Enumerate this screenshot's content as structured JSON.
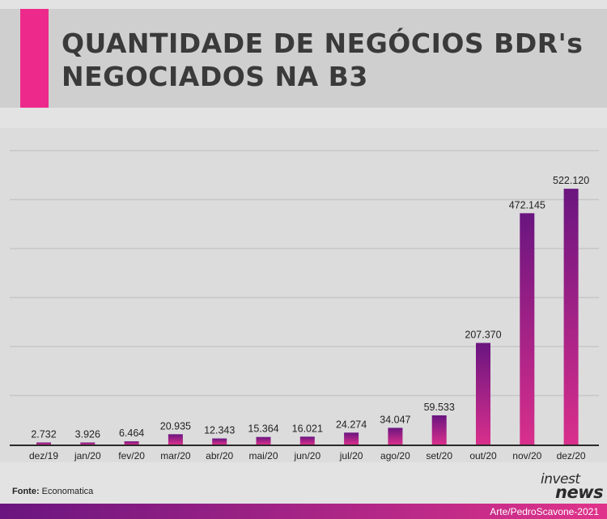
{
  "colors": {
    "accent": "#ed2a8c",
    "bar_top": "#6a1580",
    "bar_bottom": "#d92f8c",
    "footer_left": "#6a1580",
    "footer_right": "#e0338b",
    "grid": "#c6c6c6",
    "axis": "#2a2a2a"
  },
  "header": {
    "title_line1": "QUANTIDADE DE NEGÓCIOS BDR's",
    "title_line2": "NEGOCIADOS NA B3"
  },
  "chart_data": {
    "type": "bar",
    "title": "QUANTIDADE DE NEGÓCIOS BDR's NEGOCIADOS NA B3",
    "xlabel": "",
    "ylabel": "",
    "ylim": [
      0,
      600000
    ],
    "grid": true,
    "categories": [
      "dez/19",
      "jan/20",
      "fev/20",
      "mar/20",
      "abr/20",
      "mai/20",
      "jun/20",
      "jul/20",
      "ago/20",
      "set/20",
      "out/20",
      "nov/20",
      "dez/20"
    ],
    "values": [
      2732,
      3926,
      6464,
      20935,
      12343,
      15364,
      16021,
      24274,
      34047,
      59533,
      207370,
      472145,
      522120
    ],
    "value_labels": [
      "2.732",
      "3.926",
      "6.464",
      "20.935",
      "12.343",
      "15.364",
      "16.021",
      "24.274",
      "34.047",
      "59.533",
      "207.370",
      "472.145",
      "522.120"
    ]
  },
  "footer": {
    "source_label": "Fonte:",
    "source_value": "Economatica",
    "logo_line1": "invest",
    "logo_line2": "news",
    "credit": "Arte/PedroScavone-2021"
  }
}
